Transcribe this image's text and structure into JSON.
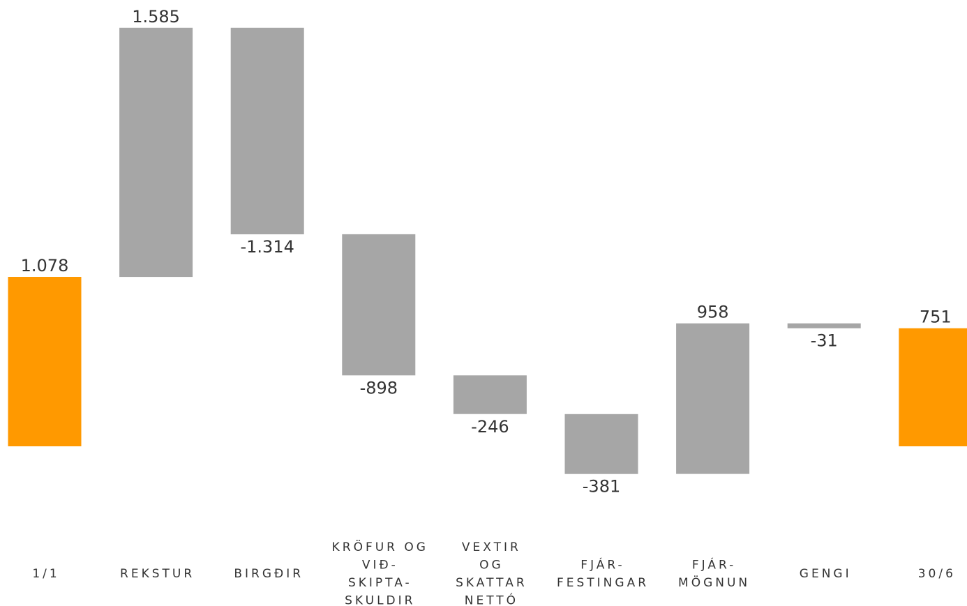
{
  "chart_data": {
    "type": "bar",
    "subtype": "waterfall",
    "categories": [
      [
        "1/1"
      ],
      [
        "REKSTUR"
      ],
      [
        "BIRGÐIR"
      ],
      [
        "KRÖFUR OG",
        "VIÐ-",
        "SKIPTA-",
        "SKULDIR"
      ],
      [
        "VEXTIR",
        "OG",
        "SKATTAR",
        "NETTÓ"
      ],
      [
        "FJÁR-",
        "FESTINGAR"
      ],
      [
        "FJÁR-",
        "MÖGNUN"
      ],
      [
        "GENGI"
      ],
      [
        "30/6"
      ]
    ],
    "values": [
      1078,
      1585,
      -1314,
      -898,
      -246,
      -381,
      958,
      -31,
      751
    ],
    "value_labels": [
      "1.078",
      "1.585",
      "-1.314",
      "-898",
      "-246",
      "-381",
      "958",
      "-31",
      "751"
    ],
    "bar_kinds": [
      "total",
      "delta",
      "delta",
      "delta",
      "delta",
      "delta",
      "delta",
      "delta",
      "total"
    ],
    "colors": {
      "total": "#ff9900",
      "delta": "#a6a6a6",
      "text": "#333333"
    },
    "grid": false,
    "legend": "none",
    "title": "",
    "xlabel": "",
    "ylabel": ""
  }
}
